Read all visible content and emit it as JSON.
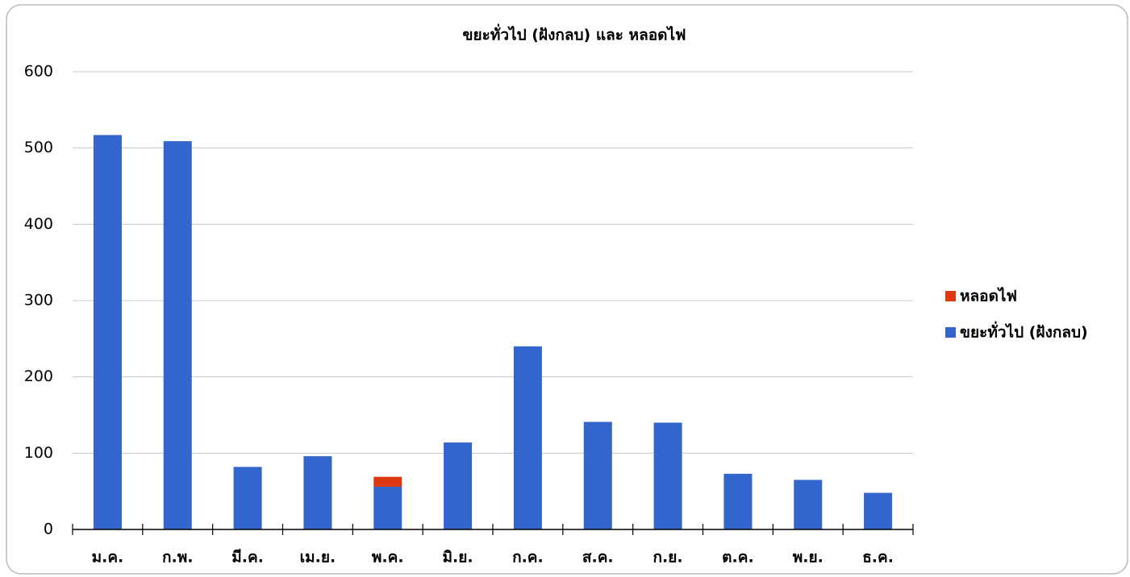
{
  "chart_data": {
    "type": "stacked_bar",
    "title": "ขยะทั่วไป (ฝังกลบ) และ หลอดไฟ",
    "categories": [
      "ม.ค.",
      "ก.พ.",
      "มี.ค.",
      "เม.ย.",
      "พ.ค.",
      "มิ.ย.",
      "ก.ค.",
      "ส.ค.",
      "ก.ย.",
      "ต.ค.",
      "พ.ย.",
      "ธ.ค."
    ],
    "series": [
      {
        "name": "ขยะทั่วไป (ฝังกลบ)",
        "color": "#3366cc",
        "values": [
          517,
          509,
          82,
          96,
          56,
          114,
          240,
          141,
          140,
          73,
          65,
          48
        ]
      },
      {
        "name": "หลอดไฟ",
        "color": "#dc3912",
        "values": [
          0,
          0,
          0,
          0,
          13,
          0,
          0,
          0,
          0,
          0,
          0,
          0
        ]
      }
    ],
    "ylim": [
      0,
      600
    ],
    "yticks": [
      0,
      100,
      200,
      300,
      400,
      500,
      600
    ],
    "grid": true,
    "legend": "right"
  }
}
